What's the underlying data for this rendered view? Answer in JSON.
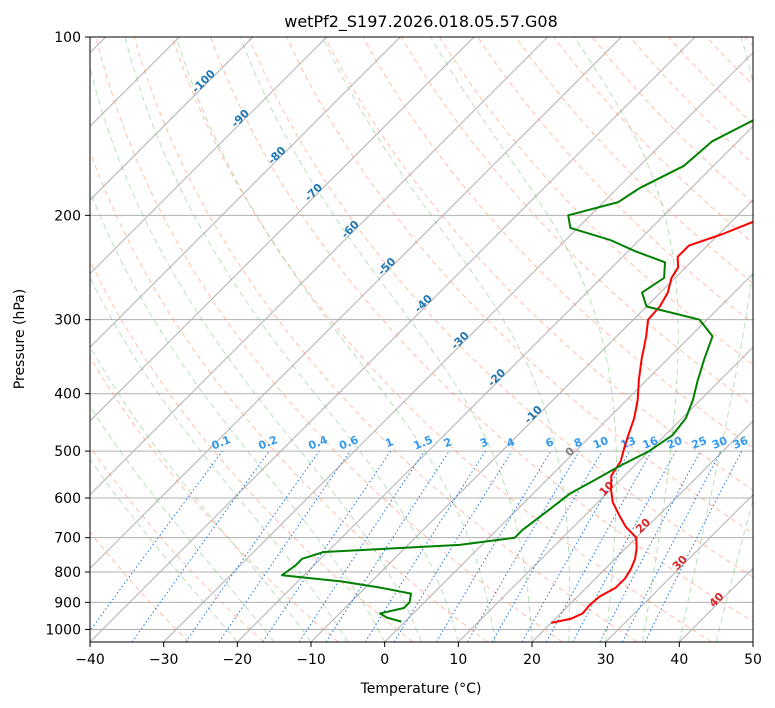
{
  "chart_data": {
    "type": "line",
    "title": "wetPf2_S197.2026.018.05.57.G08",
    "xlabel": "Temperature (°C)",
    "ylabel": "Pressure (hPa)",
    "xlim": [
      -40,
      50
    ],
    "ylim": [
      1050,
      100
    ],
    "y_scale": "log",
    "grid": true,
    "x_ticks": [
      -40,
      -30,
      -20,
      -10,
      0,
      10,
      20,
      30,
      40,
      50
    ],
    "x_tick_labels": [
      "−40",
      "−30",
      "−20",
      "−10",
      "0",
      "10",
      "20",
      "30",
      "40",
      "50"
    ],
    "y_ticks": [
      1000,
      900,
      800,
      700,
      600,
      500,
      400,
      300,
      200,
      100
    ],
    "y_tick_labels": [
      "1000",
      "900",
      "800",
      "700",
      "600",
      "500",
      "400",
      "300",
      "200",
      "100"
    ],
    "series": [
      {
        "color": "#ff0000",
        "pressure": [
          975,
          960,
          940,
          910,
          880,
          850,
          820,
          790,
          760,
          730,
          700,
          670,
          640,
          610,
          580,
          550,
          520,
          500,
          470,
          440,
          410,
          380,
          350,
          320,
          300,
          285,
          270,
          255,
          245,
          235,
          225,
          215,
          205,
          195,
          180,
          165,
          150,
          135,
          120,
          110,
          100
        ],
        "temperature": [
          20.0,
          22.1,
          23.0,
          22.8,
          23.0,
          24.0,
          24.0,
          23.5,
          22.7,
          21.5,
          20.0,
          17.0,
          14.5,
          12.0,
          10.0,
          8.2,
          7.5,
          6.5,
          5.0,
          3.5,
          1.5,
          -1.0,
          -3.5,
          -6.0,
          -8.0,
          -8.2,
          -9.0,
          -10.5,
          -11.0,
          -12.5,
          -12.5,
          -9.5,
          -7.0,
          -6.0,
          -6.2,
          -6.5,
          -6.2,
          -5.5,
          -5.0,
          -4.0,
          -3.0
        ]
      },
      {
        "color": "#008000",
        "pressure": [
          970,
          955,
          940,
          920,
          900,
          870,
          850,
          830,
          810,
          780,
          760,
          740,
          720,
          700,
          680,
          650,
          620,
          590,
          560,
          530,
          500,
          470,
          440,
          410,
          380,
          350,
          320,
          300,
          285,
          270,
          255,
          240,
          230,
          220,
          210,
          200,
          190,
          180,
          165,
          150,
          135,
          120,
          110,
          100
        ],
        "temperature": [
          -0.5,
          -3.0,
          -4.5,
          -2.0,
          -2.0,
          -3.0,
          -8.0,
          -14.0,
          -23.0,
          -22.5,
          -22.5,
          -20.5,
          -3.0,
          3.5,
          3.5,
          4.0,
          4.5,
          5.0,
          6.5,
          8.0,
          10.0,
          11.0,
          10.5,
          9.0,
          7.0,
          5.0,
          3.0,
          -1.0,
          -10.0,
          -12.5,
          -11.5,
          -13.5,
          -19.0,
          -24.0,
          -31.0,
          -33.0,
          -28.0,
          -27.0,
          -24.0,
          -23.5,
          -20.0,
          -13.0,
          -7.5,
          -3.5
        ]
      }
    ]
  },
  "dry_adiabat_labels": [
    "-100",
    "-90",
    "-80",
    "-70",
    "-60",
    "-50",
    "-40",
    "-30",
    "-20",
    "-10",
    "0",
    "10",
    "20",
    "30",
    "40"
  ],
  "mixing_ratio_labels": [
    "0.1",
    "0.2",
    "0.4",
    "0.6",
    "1",
    "1.5",
    "2",
    "3",
    "4",
    "6",
    "8",
    "10",
    "13",
    "16",
    "20",
    "25",
    "30",
    "36"
  ],
  "colors": {
    "temperature": "#ff0000",
    "dewpoint": "#008000",
    "dry_adiabat": "#ff8a66",
    "moist_adiabat": "#66bb66",
    "mixing_ratio": "#1f77e0",
    "isotherm": "#808080",
    "cold_label": "#1f77b4",
    "warm_label": "#d62728"
  }
}
